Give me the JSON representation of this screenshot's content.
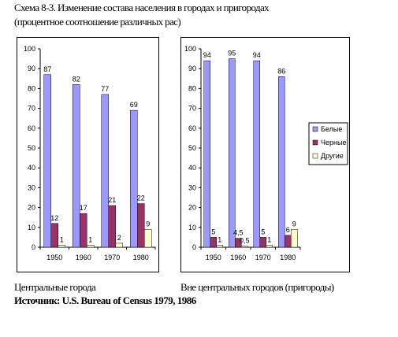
{
  "header": {
    "title_line1": "Схема 8-3. Изменение состава населения в городах и пригородах",
    "title_line2": "(процентное соотношение различных рас)"
  },
  "captions": {
    "left": "Центральные города",
    "right": "Вне центральных городов (пригороды)"
  },
  "source": "Источник: U.S. Bureau of Census 1979, 1986",
  "colors": {
    "white": "#9999ff",
    "black": "#993366",
    "other": "#ffffcc"
  },
  "chart_data": [
    {
      "type": "bar",
      "categories": [
        "1950",
        "1960",
        "1970",
        "1980"
      ],
      "series": [
        {
          "values": [
            87,
            82,
            77,
            69
          ]
        },
        {
          "values": [
            12,
            17,
            21,
            22
          ]
        },
        {
          "values": [
            1,
            1,
            2,
            9
          ]
        }
      ],
      "data_labels": [
        [
          "87",
          "82",
          "77",
          "69"
        ],
        [
          "12",
          "17",
          "21",
          "22"
        ],
        [
          "1",
          "1",
          "2",
          "9"
        ]
      ],
      "ylim": [
        0,
        100
      ],
      "yticks": [
        0,
        10,
        20,
        30,
        40,
        50,
        60,
        70,
        80,
        90,
        100
      ],
      "grid": false
    },
    {
      "type": "bar",
      "categories": [
        "1950",
        "1960",
        "1970",
        "1980"
      ],
      "series": [
        {
          "name": "Белые",
          "values": [
            94,
            95,
            94,
            86
          ]
        },
        {
          "name": "Черные",
          "values": [
            5,
            4.5,
            5,
            6
          ]
        },
        {
          "name": "Другие",
          "values": [
            1,
            0.5,
            1,
            9
          ]
        }
      ],
      "data_labels": [
        [
          "94",
          "95",
          "94",
          "86"
        ],
        [
          "5",
          "4,5",
          "5",
          "6"
        ],
        [
          "1",
          "0,5",
          "1",
          "9"
        ]
      ],
      "ylim": [
        0,
        100
      ],
      "yticks": [
        0,
        10,
        20,
        30,
        40,
        50,
        60,
        70,
        80,
        90,
        100
      ],
      "grid": false,
      "legend_position": "right"
    }
  ]
}
